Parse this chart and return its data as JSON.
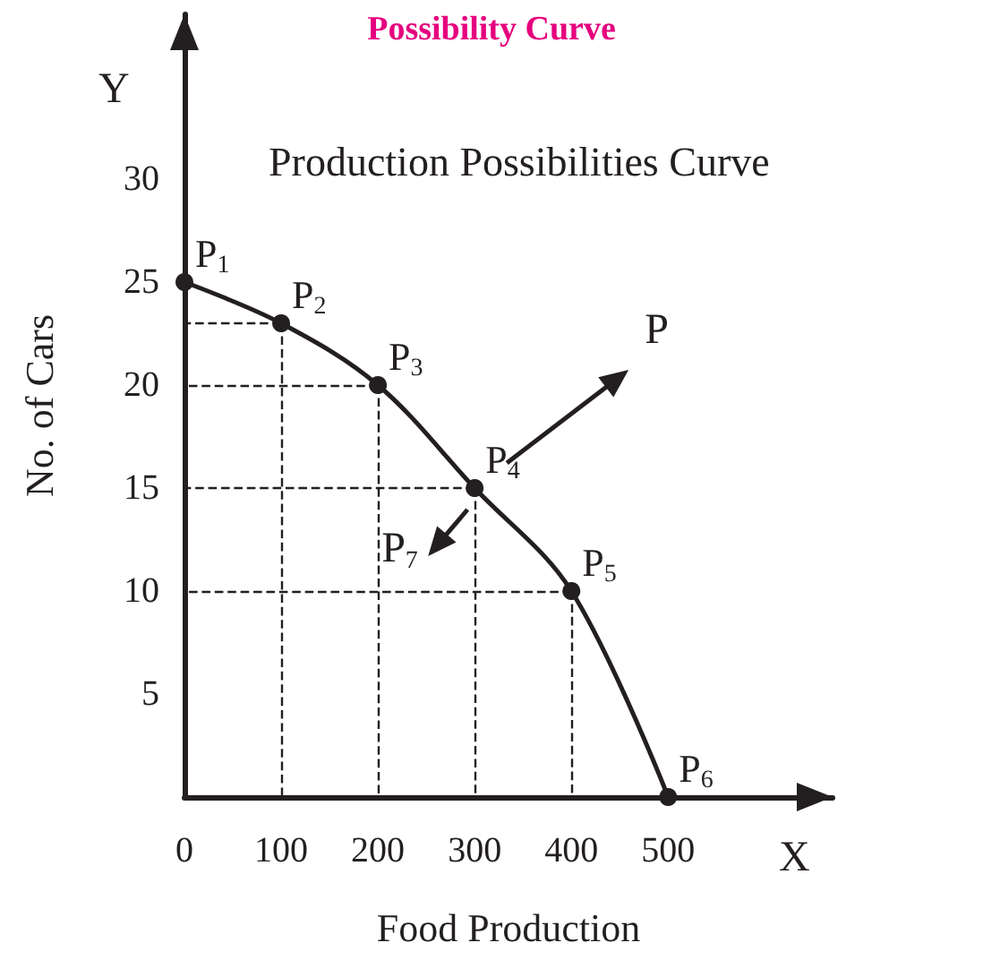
{
  "chart_data": {
    "type": "line",
    "title": "Possibility Curve",
    "subtitle": "Production Possibilities Curve",
    "xlabel": "Food Production",
    "ylabel": "No. of Cars",
    "x": [
      0,
      100,
      200,
      300,
      400,
      500
    ],
    "series": [
      {
        "color": "#231f20",
        "values": [
          25,
          23,
          20,
          15,
          10,
          0
        ]
      }
    ],
    "xlim": [
      0,
      670
    ],
    "ylim": [
      0,
      38
    ],
    "xticks": [
      0,
      100,
      200,
      300,
      400,
      500
    ],
    "yticks": [
      5,
      10,
      15,
      20,
      25,
      30
    ],
    "marker": "circle",
    "line_style": "solid",
    "annotations": [
      {
        "text": "P$_{1}$",
        "x": 0,
        "y": 25
      },
      {
        "text": "P$_{2}$",
        "x": 100,
        "y": 23
      },
      {
        "text": "P$_{3}$",
        "x": 200,
        "y": 20
      },
      {
        "text": "P$_{4}$",
        "x": 300,
        "y": 15
      },
      {
        "text": "P$_{5}$",
        "x": 400,
        "y": 10
      },
      {
        "text": "P$_{6}$",
        "x": 500,
        "y": 0
      },
      "P",
      "P$_{7}$",
      "X",
      "Y"
    ]
  }
}
